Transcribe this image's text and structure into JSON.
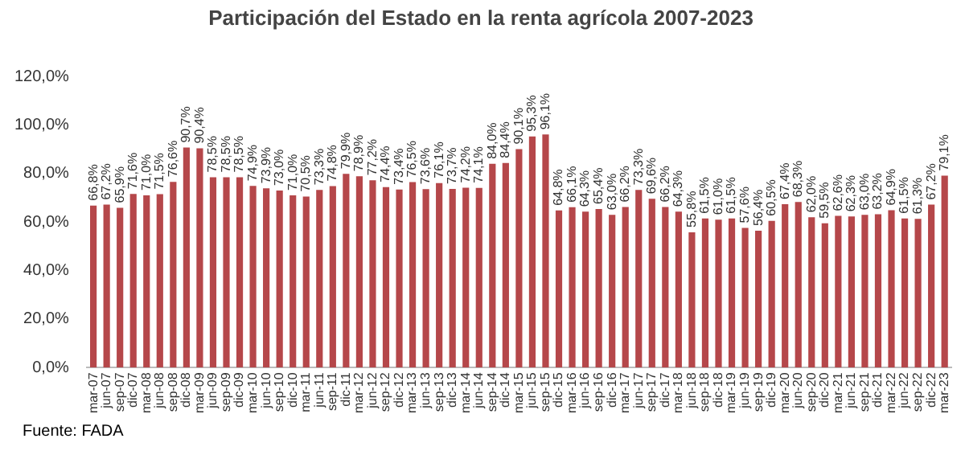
{
  "chart_data": {
    "type": "bar",
    "title": "Participación del Estado en la renta agrícola 2007-2023",
    "categories": [
      "mar-07",
      "jun-07",
      "sep-07",
      "dic-07",
      "mar-08",
      "jun-08",
      "sep-08",
      "dic-08",
      "mar-09",
      "jun-09",
      "sep-09",
      "dic-09",
      "mar-10",
      "jun-10",
      "sep-10",
      "dic-10",
      "mar-11",
      "jun-11",
      "sep-11",
      "dic-11",
      "mar-12",
      "jun-12",
      "sep-12",
      "dic-12",
      "mar-13",
      "jun-13",
      "sep-13",
      "dic-13",
      "mar-14",
      "jun-14",
      "sep-14",
      "dic-14",
      "mar-15",
      "jun-15",
      "sep-15",
      "dic-15",
      "mar-16",
      "jun-16",
      "sep-16",
      "dic-16",
      "mar-17",
      "jun-17",
      "sep-17",
      "dic-17",
      "mar-18",
      "jun-18",
      "sep-18",
      "dic-18",
      "mar-19",
      "jun-19",
      "sep-19",
      "dic-19",
      "mar-20",
      "jun-20",
      "sep-20",
      "dic-20",
      "mar-21",
      "jun-21",
      "sep-21",
      "dic-21",
      "mar-22",
      "jun-22",
      "sep-22",
      "dic-22",
      "mar-23"
    ],
    "values": [
      66.8,
      67.2,
      65.9,
      71.6,
      71.0,
      71.5,
      76.6,
      90.7,
      90.4,
      78.5,
      78.5,
      78.5,
      74.9,
      73.9,
      73.0,
      71.0,
      70.5,
      73.3,
      74.8,
      79.9,
      78.9,
      77.2,
      74.4,
      73.4,
      76.5,
      73.6,
      76.1,
      73.7,
      74.2,
      74.1,
      84.0,
      84.4,
      90.1,
      95.3,
      96.1,
      64.8,
      66.1,
      64.3,
      65.4,
      63.0,
      66.2,
      73.3,
      69.6,
      66.2,
      64.3,
      55.8,
      61.5,
      61.0,
      61.5,
      57.6,
      56.4,
      60.5,
      67.4,
      68.3,
      62.0,
      59.5,
      62.6,
      62.3,
      63.0,
      63.2,
      64.9,
      61.5,
      61.3,
      67.2,
      79.1
    ],
    "value_labels": [
      "66,8%",
      "67,2%",
      "65,9%",
      "71,6%",
      "71,0%",
      "71,5%",
      "76,6%",
      "90,7%",
      "90,4%",
      "78,5%",
      "78,5%",
      "78,5%",
      "74,9%",
      "73,9%",
      "73,0%",
      "71,0%",
      "70,5%",
      "73,3%",
      "74,8%",
      "79,9%",
      "78,9%",
      "77,2%",
      "74,4%",
      "73,4%",
      "76,5%",
      "73,6%",
      "76,1%",
      "73,7%",
      "74,2%",
      "74,1%",
      "84,0%",
      "84,4%",
      "90,1%",
      "95,3%",
      "96,1%",
      "64,8%",
      "66,1%",
      "64,3%",
      "65,4%",
      "63,0%",
      "66,2%",
      "73,3%",
      "69,6%",
      "66,2%",
      "64,3%",
      "55,8%",
      "61,5%",
      "61,0%",
      "61,5%",
      "57,6%",
      "56,4%",
      "60,5%",
      "67,4%",
      "68,3%",
      "62,0%",
      "59,5%",
      "62,6%",
      "62,3%",
      "63,0%",
      "63,2%",
      "64,9%",
      "61,5%",
      "61,3%",
      "67,2%",
      "79,1%"
    ],
    "color": "#b5474a",
    "ylim": [
      0,
      120
    ],
    "yticks": [
      {
        "value": 0,
        "label": "0,0%"
      },
      {
        "value": 20,
        "label": "20,0%"
      },
      {
        "value": 40,
        "label": "40,0%"
      },
      {
        "value": 60,
        "label": "60,0%"
      },
      {
        "value": 80,
        "label": "80,0%"
      },
      {
        "value": 100,
        "label": "100,0%"
      },
      {
        "value": 120,
        "label": "120,0%"
      }
    ],
    "grid": false,
    "legend": false,
    "annotations": [
      "Fuente: FADA"
    ]
  }
}
